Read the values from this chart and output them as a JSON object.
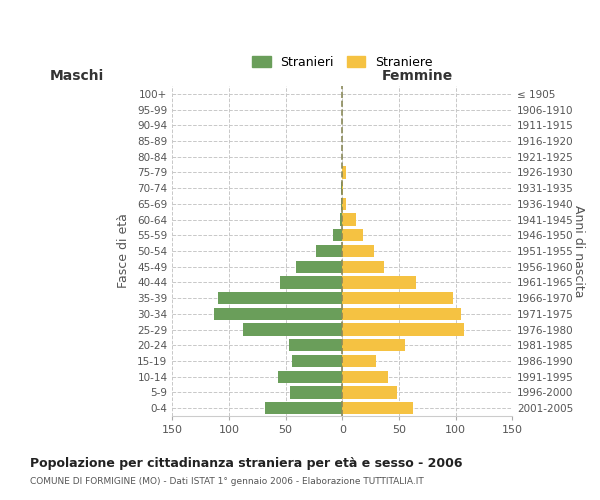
{
  "age_groups": [
    "0-4",
    "5-9",
    "10-14",
    "15-19",
    "20-24",
    "25-29",
    "30-34",
    "35-39",
    "40-44",
    "45-49",
    "50-54",
    "55-59",
    "60-64",
    "65-69",
    "70-74",
    "75-79",
    "80-84",
    "85-89",
    "90-94",
    "95-99",
    "100+"
  ],
  "birth_years": [
    "2001-2005",
    "1996-2000",
    "1991-1995",
    "1986-1990",
    "1981-1985",
    "1976-1980",
    "1971-1975",
    "1966-1970",
    "1961-1965",
    "1956-1960",
    "1951-1955",
    "1946-1950",
    "1941-1945",
    "1936-1940",
    "1931-1935",
    "1926-1930",
    "1921-1925",
    "1916-1920",
    "1911-1915",
    "1906-1910",
    "≤ 1905"
  ],
  "maschi": [
    68,
    46,
    57,
    44,
    47,
    88,
    113,
    110,
    55,
    41,
    23,
    8,
    2,
    1,
    1,
    0,
    0,
    0,
    0,
    0,
    0
  ],
  "femmine": [
    62,
    48,
    40,
    30,
    55,
    107,
    105,
    98,
    65,
    37,
    28,
    18,
    12,
    3,
    1,
    3,
    0,
    0,
    0,
    0,
    0
  ],
  "male_color": "#6a9e5a",
  "female_color": "#f5c242",
  "center_line_color": "#8a8a5a",
  "grid_color": "#c8c8c8",
  "background_color": "#ffffff",
  "title": "Popolazione per cittadinanza straniera per età e sesso - 2006",
  "subtitle": "COMUNE DI FORMIGINE (MO) - Dati ISTAT 1° gennaio 2006 - Elaborazione TUTTITALIA.IT",
  "xlabel_left": "Maschi",
  "xlabel_right": "Femmine",
  "ylabel_left": "Fasce di età",
  "ylabel_right": "Anni di nascita",
  "xlim": 150,
  "legend_male": "Stranieri",
  "legend_female": "Straniere"
}
